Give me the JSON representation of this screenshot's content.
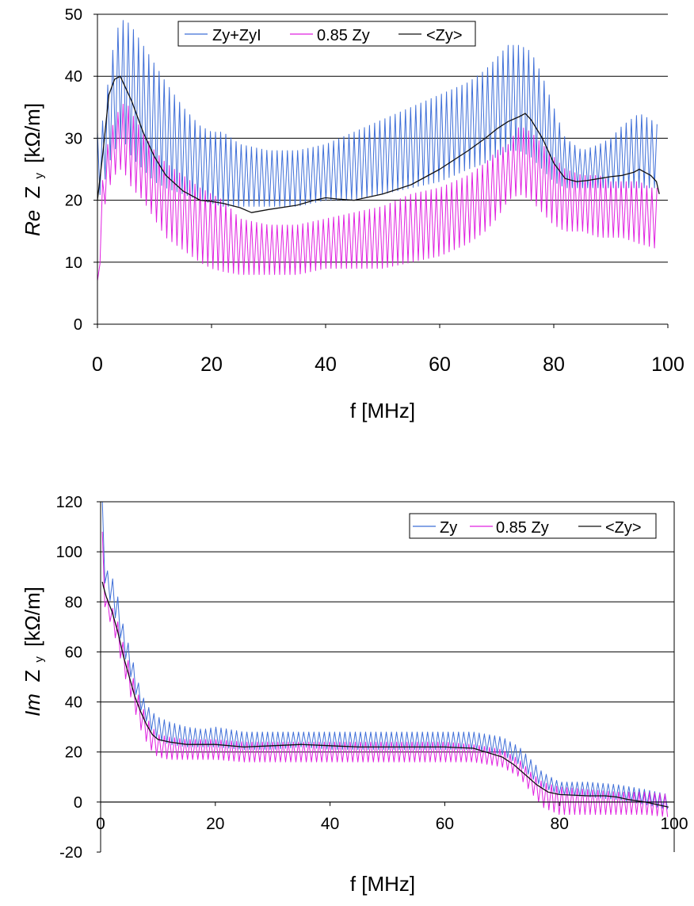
{
  "chart_data": [
    {
      "type": "line",
      "ylabel_italic": "Re",
      "ylabel_main": "Z",
      "ylabel_sub": "y",
      "ylabel_unit": "[kΩ/m]",
      "xlabel": "f [MHz]",
      "xlim": [
        0,
        100
      ],
      "ylim": [
        0,
        50
      ],
      "xticks": [
        "0",
        "20",
        "40",
        "60",
        "80",
        "100"
      ],
      "yticks": [
        "0",
        "10",
        "20",
        "30",
        "40",
        "50"
      ],
      "grid": "horizontal",
      "legend_position": "top",
      "series": [
        {
          "name": "Zy+ZyI",
          "color": "#3f6fd8",
          "style": "oscillating-band",
          "x": [
            0,
            1,
            2,
            3,
            4,
            5,
            6,
            8,
            10,
            12,
            15,
            18,
            20,
            22,
            25,
            30,
            35,
            40,
            45,
            50,
            55,
            60,
            65,
            68,
            70,
            72,
            74,
            76,
            78,
            80,
            82,
            85,
            88,
            90,
            92,
            95,
            97,
            98.5
          ],
          "upper": [
            31,
            33,
            40,
            46,
            49,
            49,
            48,
            45,
            42,
            39,
            35,
            32,
            31,
            31,
            29,
            28,
            28,
            29,
            31,
            33,
            35,
            37,
            39,
            41,
            43,
            45,
            45,
            44,
            40,
            35,
            30,
            28,
            29,
            30,
            32,
            34,
            33,
            32
          ],
          "lower": [
            20,
            22,
            26,
            28,
            30,
            29,
            27,
            25,
            23,
            22,
            21,
            20,
            19.5,
            19,
            19,
            19,
            19,
            20,
            20,
            21,
            22,
            23,
            25,
            26,
            27,
            28,
            28,
            27,
            25,
            23,
            22,
            22,
            22,
            22,
            22,
            22,
            22,
            22
          ]
        },
        {
          "name": "0.85 Zy",
          "color": "#e020e0",
          "style": "oscillating-band",
          "x": [
            0,
            1,
            2,
            3,
            4,
            5,
            6,
            8,
            10,
            12,
            15,
            18,
            20,
            22,
            25,
            30,
            35,
            40,
            45,
            50,
            55,
            60,
            65,
            68,
            70,
            72,
            74,
            76,
            78,
            80,
            82,
            85,
            88,
            90,
            92,
            95,
            97,
            98.5
          ],
          "upper": [
            7,
            25,
            30,
            33,
            35,
            36,
            34,
            31,
            28,
            26,
            24,
            22,
            21,
            20,
            17,
            16,
            16,
            17,
            18,
            19,
            21,
            22,
            24,
            26,
            28,
            29,
            32,
            31,
            29,
            27,
            25,
            24,
            24,
            23,
            23,
            23,
            22,
            22
          ],
          "lower": [
            3,
            18,
            22,
            24,
            25,
            24,
            22,
            20,
            17,
            14,
            12,
            10,
            9,
            8.5,
            8,
            8,
            8,
            9,
            9,
            9,
            10,
            11,
            13,
            15,
            17,
            20,
            21,
            20,
            18,
            16,
            15,
            15,
            14,
            14,
            14,
            13,
            12.5,
            12
          ]
        },
        {
          "name": "<Zy>",
          "color": "#111111",
          "style": "line",
          "x": [
            0,
            1,
            2,
            3,
            4,
            5,
            6,
            8,
            10,
            12,
            15,
            18,
            20,
            22,
            25,
            27,
            30,
            35,
            38,
            40,
            42,
            45,
            50,
            55,
            60,
            65,
            68,
            70,
            72,
            74,
            75,
            76,
            78,
            80,
            82,
            84,
            86,
            88,
            90,
            92,
            94,
            95,
            96,
            97,
            98,
            98.5
          ],
          "y": [
            20,
            28,
            37,
            39.5,
            40,
            38,
            36,
            31,
            27,
            24,
            21.5,
            20,
            19.8,
            19.5,
            18.8,
            18,
            18.5,
            19.2,
            20,
            20.4,
            20.2,
            20,
            21,
            22.5,
            25,
            28,
            30,
            31.5,
            32.7,
            33.5,
            34,
            33,
            30,
            26,
            23.5,
            23,
            23.2,
            23.5,
            23.8,
            24,
            24.5,
            25,
            24.5,
            24,
            23,
            21
          ]
        }
      ]
    },
    {
      "type": "line",
      "ylabel_italic": "Im",
      "ylabel_main": "Z",
      "ylabel_sub": "y",
      "ylabel_unit": "[kΩ/m]",
      "xlabel": "f [MHz]",
      "xlim": [
        0,
        100
      ],
      "ylim": [
        -20,
        120
      ],
      "xticks": [
        "0",
        "20",
        "40",
        "60",
        "80",
        "100"
      ],
      "yticks": [
        "-20",
        "0",
        "20",
        "40",
        "60",
        "80",
        "100",
        "120"
      ],
      "grid": "horizontal",
      "legend_position": "top-right",
      "series": [
        {
          "name": "Zy",
          "color": "#3f6fd8",
          "style": "oscillating-band",
          "x": [
            0.3,
            0.5,
            1,
            2,
            3,
            4,
            5,
            6,
            7,
            8,
            9,
            10,
            12,
            15,
            18,
            20,
            25,
            30,
            35,
            40,
            45,
            50,
            55,
            60,
            65,
            70,
            73,
            75,
            77,
            80,
            85,
            90,
            95,
            99
          ],
          "upper": [
            120,
            100,
            93,
            90,
            82,
            70,
            62,
            53,
            44,
            39,
            36,
            34,
            32,
            30,
            29,
            30,
            28,
            28,
            28,
            28,
            28,
            28,
            28,
            28,
            28,
            26,
            22,
            17,
            12,
            8,
            8,
            7,
            5,
            3
          ],
          "lower": [
            95,
            90,
            85,
            78,
            70,
            60,
            52,
            44,
            37,
            32,
            28,
            25,
            23,
            22,
            22,
            22,
            21,
            21,
            22,
            21,
            21,
            21,
            21,
            21,
            21,
            19,
            15,
            10,
            6,
            3,
            2,
            1,
            -1,
            -3
          ]
        },
        {
          "name": "0.85 Zy",
          "color": "#e020e0",
          "style": "oscillating-band",
          "x": [
            0.3,
            0.5,
            1,
            2,
            3,
            4,
            5,
            6,
            7,
            8,
            9,
            10,
            12,
            15,
            18,
            20,
            25,
            30,
            35,
            40,
            45,
            50,
            55,
            60,
            65,
            70,
            73,
            75,
            77,
            80,
            85,
            90,
            95,
            99
          ],
          "upper": [
            108,
            88,
            82,
            78,
            72,
            63,
            55,
            47,
            40,
            34,
            30,
            27,
            26,
            25,
            25,
            25,
            24,
            24,
            24,
            24,
            24,
            24,
            24,
            24,
            23,
            21,
            17,
            12,
            8,
            6,
            5,
            4,
            4,
            3
          ],
          "lower": [
            85,
            80,
            76,
            70,
            62,
            52,
            44,
            36,
            29,
            24,
            20,
            18,
            17,
            17,
            17,
            17,
            16,
            16,
            16,
            16,
            16,
            16,
            16,
            16,
            16,
            14,
            10,
            4,
            -2,
            -5,
            -5,
            -5,
            -5,
            -6
          ]
        },
        {
          "name": "<Zy>",
          "color": "#111111",
          "style": "line",
          "x": [
            0.3,
            0.5,
            1,
            2,
            3,
            4,
            5,
            6,
            7,
            8,
            9,
            10,
            12,
            15,
            18,
            20,
            25,
            30,
            35,
            40,
            45,
            50,
            55,
            60,
            65,
            70,
            72,
            74,
            76,
            78,
            80,
            85,
            88,
            90,
            92,
            95,
            99
          ],
          "y": [
            88,
            86,
            82,
            76,
            68,
            58,
            50,
            42,
            36,
            31,
            27,
            25,
            24,
            23,
            23,
            23,
            22,
            22.5,
            23,
            22.5,
            22,
            22,
            22,
            22,
            21.5,
            18,
            15,
            11,
            7,
            4,
            3,
            2.5,
            2.5,
            2,
            1,
            0,
            -2
          ]
        }
      ]
    }
  ]
}
